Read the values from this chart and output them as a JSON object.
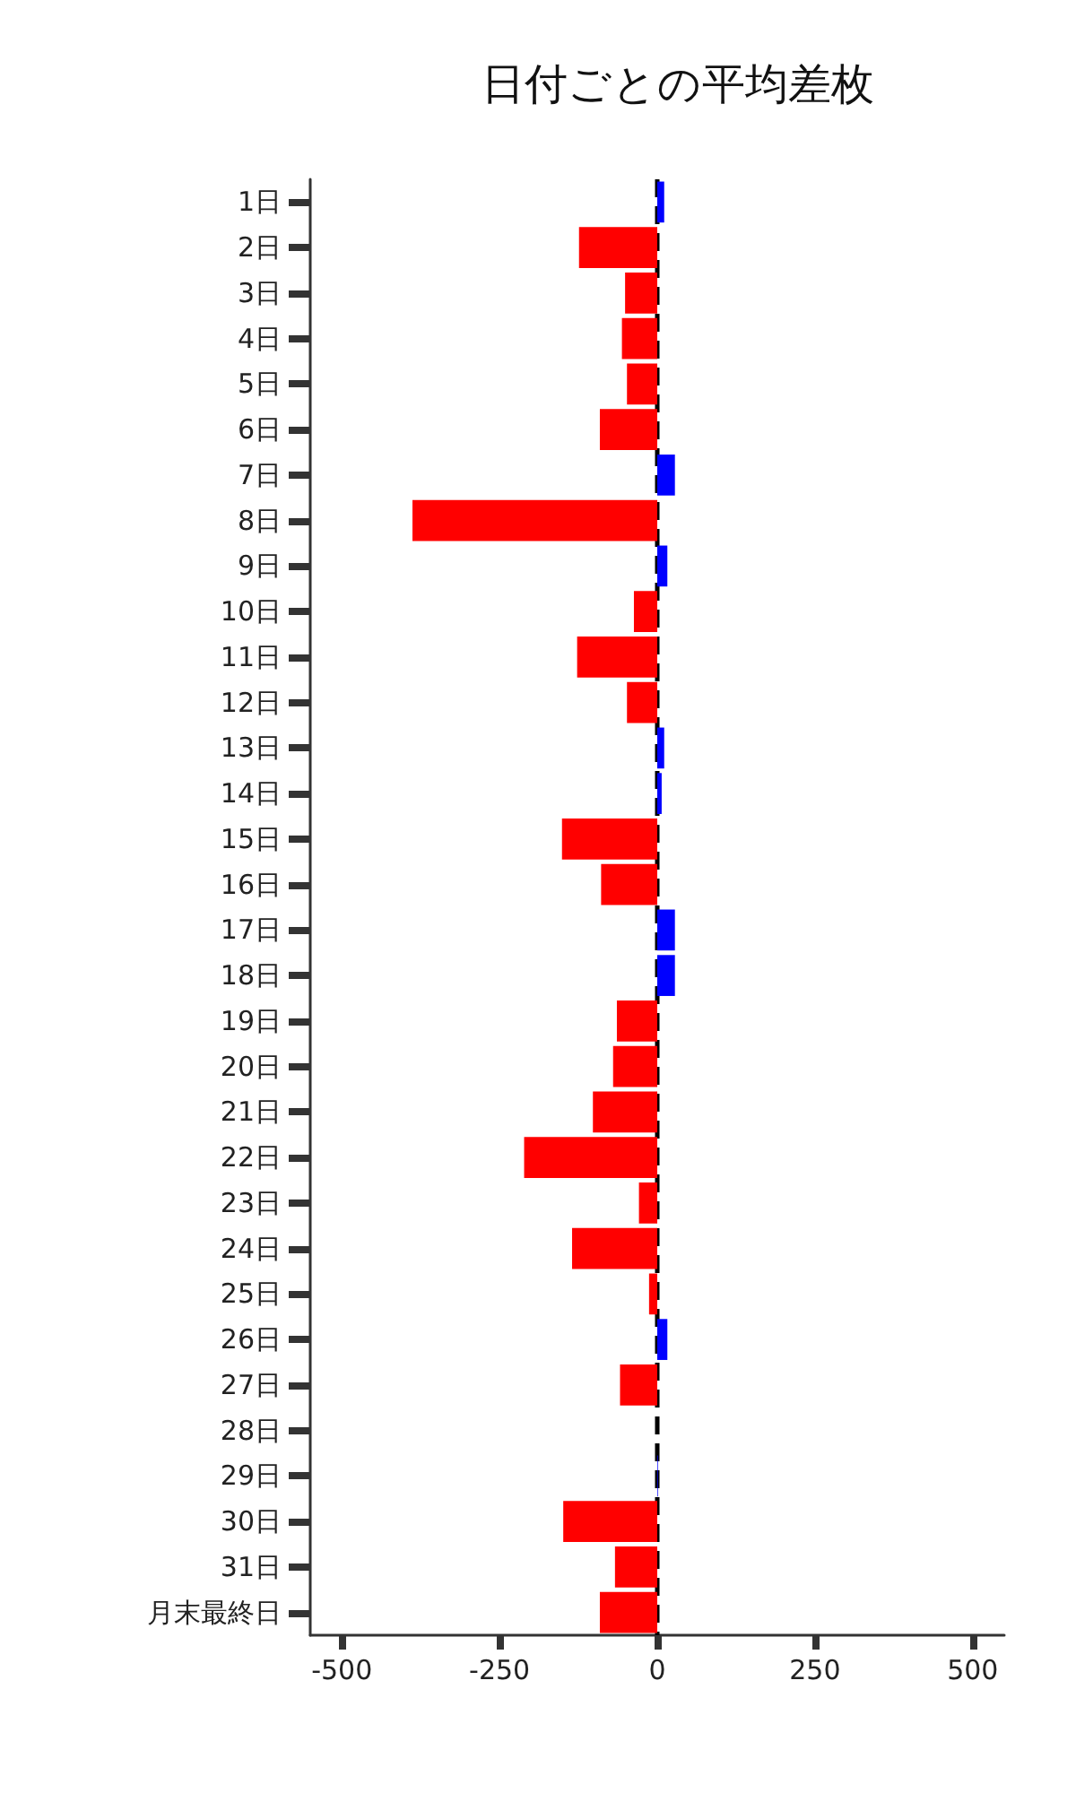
{
  "chart_data": {
    "type": "bar",
    "orientation": "horizontal",
    "title": "日付ごとの平均差枚",
    "categories": [
      "1日",
      "2日",
      "3日",
      "4日",
      "5日",
      "6日",
      "7日",
      "8日",
      "9日",
      "10日",
      "11日",
      "12日",
      "13日",
      "14日",
      "15日",
      "16日",
      "17日",
      "18日",
      "19日",
      "20日",
      "21日",
      "22日",
      "23日",
      "24日",
      "25日",
      "26日",
      "27日",
      "28日",
      "29日",
      "30日",
      "31日",
      "月末最終日"
    ],
    "values": [
      11,
      -124,
      -51,
      -56,
      -48,
      -91,
      28,
      -388,
      16,
      -37,
      -127,
      -48,
      11,
      7,
      -151,
      -89,
      28,
      28,
      -64,
      -70,
      -102,
      -211,
      -29,
      -135,
      -13,
      16,
      -59,
      0,
      1,
      -149,
      -67,
      -91
    ],
    "colors": [
      "#0000ff",
      "#ff0000",
      "#ff0000",
      "#ff0000",
      "#ff0000",
      "#ff0000",
      "#0000ff",
      "#ff0000",
      "#0000ff",
      "#ff0000",
      "#ff0000",
      "#ff0000",
      "#0000ff",
      "#0000ff",
      "#ff0000",
      "#ff0000",
      "#0000ff",
      "#0000ff",
      "#ff0000",
      "#ff0000",
      "#ff0000",
      "#ff0000",
      "#ff0000",
      "#ff0000",
      "#ff0000",
      "#0000ff",
      "#ff0000",
      "#0000ff",
      "#0000ff",
      "#ff0000",
      "#ff0000",
      "#ff0000"
    ],
    "xlim": [
      -550,
      550
    ],
    "xticks": [
      -500,
      -250,
      0,
      250,
      500
    ],
    "ref_lines": [
      {
        "axis": "x",
        "value": 0,
        "color": "#000000",
        "line_style": "dashed"
      }
    ],
    "grid": false
  }
}
